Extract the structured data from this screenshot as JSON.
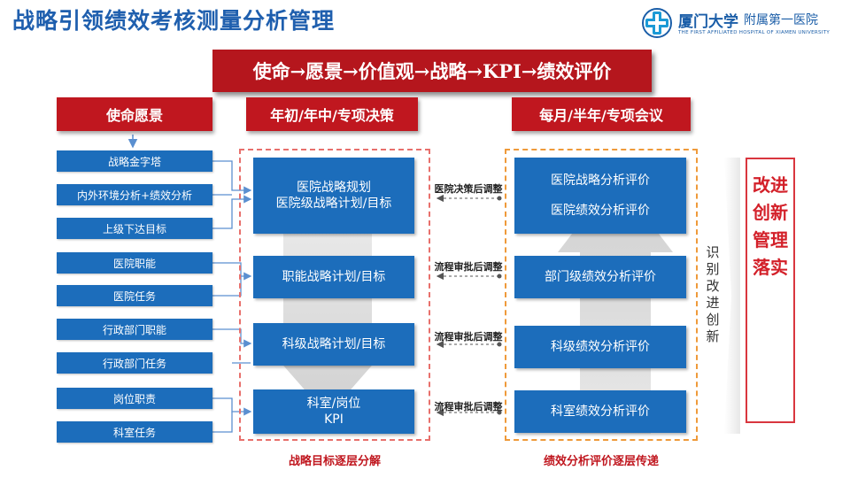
{
  "title": "战略引领绩效考核测量分析管理",
  "logo": {
    "name_cn_main": "厦门大学",
    "name_cn_sub": "附属第一医院",
    "name_en": "THE FIRST AFFILIATED HOSPITAL OF XIAMEN UNIVERSITY"
  },
  "banner": "使命→愿景→价值观→战略→KPI→绩效评价",
  "headers": {
    "col1": "使命愿景",
    "col2": "年初/年中/专项决策",
    "col3": "每月/半年/专项会议"
  },
  "left_items": [
    "战略金字塔",
    "内外环境分析+绩效分析",
    "上级下达目标",
    "医院职能",
    "医院任务",
    "行政部门职能",
    "行政部门任务",
    "岗位职责",
    "科室任务"
  ],
  "middle_boxes": [
    "医院战略规划\n医院级战略计划/目标",
    "职能战略计划/目标",
    "科级战略计划/目标",
    "科室/岗位\nKPI"
  ],
  "between_labels": [
    "医院决策后调整",
    "流程审批后调整",
    "流程审批后调整",
    "流程审批后调整"
  ],
  "right_boxes": [
    "医院战略分析评价\n医院绩效分析评价",
    "部门级绩效分析评价",
    "科级绩效分析评价",
    "科室绩效分析评价"
  ],
  "side_label": "识别改进创新",
  "final": "改进创新 管理落实",
  "footer_left": "战略目标逐层分解",
  "footer_right": "绩效分析评价逐层传递",
  "colors": {
    "blue": "#1c6dbb",
    "red": "#c0171f",
    "title": "#1f5fae"
  }
}
